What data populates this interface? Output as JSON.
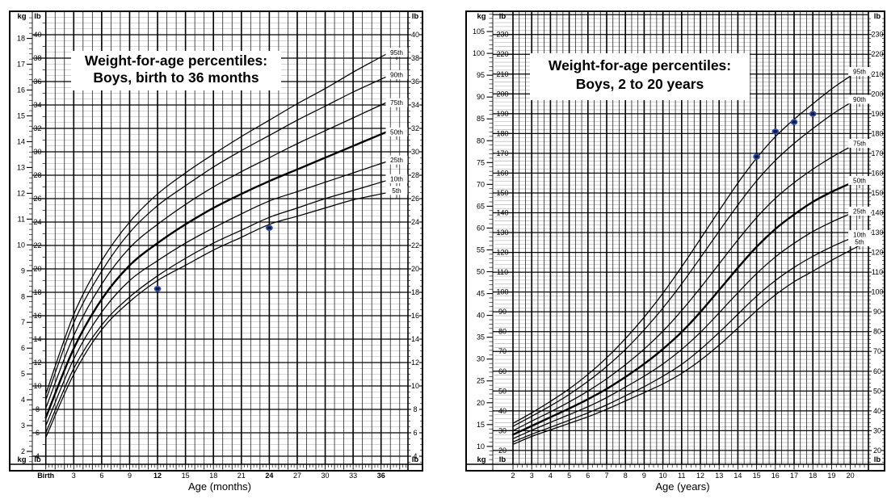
{
  "page": {
    "background": "#ffffff"
  },
  "chart_data": [
    {
      "id": "boys-birth-36-months",
      "type": "line",
      "title_lines": [
        "Weight-for-age percentiles:",
        "Boys, birth to 36 months"
      ],
      "xlabel": "Age (months)",
      "x_unit": "months",
      "xlim": [
        0,
        36
      ],
      "x_ticks": [
        0,
        3,
        6,
        9,
        12,
        15,
        18,
        21,
        24,
        27,
        30,
        33,
        36
      ],
      "x_tick_labels": [
        "Birth",
        "3",
        "6",
        "9",
        "12",
        "15",
        "18",
        "21",
        "24",
        "27",
        "30",
        "33",
        "36"
      ],
      "x_bold_labels": [
        "Birth",
        "12",
        "24",
        "36"
      ],
      "y_axes": {
        "left_unit": "kg",
        "inner_unit": "lb",
        "right_unit": "lb"
      },
      "kg_ticks": [
        2,
        3,
        4,
        5,
        6,
        7,
        8,
        9,
        10,
        11,
        12,
        13,
        14,
        15,
        16,
        17,
        18
      ],
      "lb_ticks": [
        4,
        6,
        8,
        10,
        12,
        14,
        16,
        18,
        20,
        22,
        24,
        26,
        28,
        30,
        32,
        34,
        36,
        38,
        40
      ],
      "ylim_lb": [
        3.3,
        42
      ],
      "grid": "on",
      "legend_position": "right-edge-labels",
      "series_x": [
        0,
        3,
        6,
        9,
        12,
        15,
        18,
        21,
        24,
        27,
        30,
        33,
        36
      ],
      "series": [
        {
          "name": "5th",
          "values_lb": [
            5.6,
            11.0,
            14.8,
            17.2,
            19.0,
            20.3,
            21.6,
            22.7,
            23.8,
            24.5,
            25.2,
            25.9,
            26.4
          ]
        },
        {
          "name": "10th",
          "values_lb": [
            6.0,
            11.5,
            15.2,
            17.6,
            19.4,
            20.9,
            22.2,
            23.3,
            24.4,
            25.2,
            26.0,
            26.7,
            27.4
          ]
        },
        {
          "name": "25th",
          "values_lb": [
            6.6,
            12.3,
            16.3,
            19.0,
            20.7,
            22.2,
            23.5,
            24.7,
            25.8,
            26.6,
            27.4,
            28.2,
            29.0
          ]
        },
        {
          "name": "50th",
          "values_lb": [
            7.3,
            13.2,
            17.4,
            20.3,
            22.2,
            23.8,
            25.2,
            26.4,
            27.5,
            28.5,
            29.5,
            30.5,
            31.5
          ]
        },
        {
          "name": "75th",
          "values_lb": [
            8.1,
            14.3,
            18.7,
            21.8,
            23.8,
            25.5,
            27.0,
            28.3,
            29.5,
            30.7,
            31.8,
            32.9,
            34.0
          ]
        },
        {
          "name": "90th",
          "values_lb": [
            8.8,
            15.4,
            19.8,
            23.1,
            25.4,
            27.1,
            28.7,
            30.1,
            31.4,
            32.7,
            33.9,
            35.1,
            36.2
          ]
        },
        {
          "name": "95th",
          "values_lb": [
            9.3,
            16.1,
            20.7,
            24.0,
            26.4,
            28.2,
            29.8,
            31.3,
            32.7,
            34.1,
            35.4,
            36.8,
            38.1
          ]
        }
      ],
      "median_series": "50th",
      "percentile_labels": [
        {
          "text": "95th",
          "lb": 38.5
        },
        {
          "text": "90th",
          "lb": 36.6
        },
        {
          "text": "75th",
          "lb": 34.2
        },
        {
          "text": "50th",
          "lb": 31.7
        },
        {
          "text": "25th",
          "lb": 29.3
        },
        {
          "text": "10th",
          "lb": 27.7
        },
        {
          "text": "5th",
          "lb": 26.7
        }
      ],
      "patient_points": [
        {
          "age": 12,
          "weight_lb": 18.3,
          "weight_kg": 8.3
        },
        {
          "age": 24,
          "weight_lb": 23.5,
          "weight_kg": 10.7
        }
      ],
      "marker_fill": "#0d1833",
      "marker_ring": "#2e4fae"
    },
    {
      "id": "boys-2-20-years",
      "type": "line",
      "title_lines": [
        "Weight-for-age percentiles:",
        "Boys, 2 to 20 years"
      ],
      "xlabel": "Age (years)",
      "x_unit": "years",
      "xlim": [
        2,
        20
      ],
      "x_ticks": [
        2,
        3,
        4,
        5,
        6,
        7,
        8,
        9,
        10,
        11,
        12,
        13,
        14,
        15,
        16,
        17,
        18,
        19,
        20
      ],
      "x_tick_labels": [
        "2",
        "3",
        "4",
        "5",
        "6",
        "7",
        "8",
        "9",
        "10",
        "11",
        "12",
        "13",
        "14",
        "15",
        "16",
        "17",
        "18",
        "19",
        "20"
      ],
      "x_bold_labels": [],
      "y_axes": {
        "left_unit": "kg",
        "inner_unit": "lb",
        "right_unit": "lb"
      },
      "kg_ticks": [
        10,
        15,
        20,
        25,
        30,
        35,
        40,
        45,
        50,
        55,
        60,
        65,
        70,
        75,
        80,
        85,
        90,
        95,
        100,
        105
      ],
      "lb_ticks": [
        20,
        30,
        40,
        50,
        60,
        70,
        80,
        90,
        100,
        110,
        120,
        130,
        140,
        150,
        160,
        170,
        180,
        190,
        200,
        210,
        220,
        230
      ],
      "ylim_lb": [
        13,
        242
      ],
      "grid": "on",
      "legend_position": "right-edge-labels",
      "series_x": [
        2,
        3,
        4,
        5,
        6,
        7,
        8,
        9,
        10,
        11,
        12,
        13,
        14,
        15,
        16,
        17,
        18,
        19,
        20
      ],
      "series": [
        {
          "name": "5th",
          "values_lb": [
            23.1,
            27.1,
            30.4,
            33.7,
            37.0,
            40.8,
            45.0,
            49.2,
            53.6,
            58.9,
            65.5,
            73.2,
            81.8,
            90.6,
            98.5,
            105.2,
            110.5,
            116.0,
            121.0
          ]
        },
        {
          "name": "10th",
          "values_lb": [
            24.3,
            28.2,
            31.7,
            35.3,
            39.0,
            43.0,
            47.6,
            52.2,
            57.5,
            63.5,
            71.0,
            79.6,
            88.8,
            97.9,
            105.8,
            112.4,
            118.0,
            122.8,
            127.0
          ]
        },
        {
          "name": "25th",
          "values_lb": [
            26.0,
            30.2,
            34.2,
            38.1,
            42.1,
            46.7,
            52.0,
            57.5,
            63.7,
            71.0,
            79.6,
            89.5,
            99.6,
            109.3,
            117.7,
            124.6,
            130.5,
            135.3,
            139.5
          ]
        },
        {
          "name": "50th",
          "values_lb": [
            28.0,
            32.4,
            36.8,
            41.2,
            45.9,
            51.1,
            57.1,
            63.7,
            71.2,
            79.8,
            89.9,
            101.0,
            112.2,
            122.8,
            131.8,
            139.1,
            145.5,
            150.5,
            154.8
          ]
        },
        {
          "name": "75th",
          "values_lb": [
            30.0,
            34.8,
            39.5,
            44.5,
            50.0,
            56.2,
            63.3,
            71.2,
            80.2,
            90.6,
            102.1,
            114.2,
            126.3,
            137.6,
            147.3,
            155.2,
            162.0,
            168.0,
            173.3
          ]
        },
        {
          "name": "90th",
          "values_lb": [
            32.2,
            37.3,
            42.5,
            48.3,
            54.9,
            62.4,
            71.0,
            80.9,
            91.9,
            104.1,
            117.3,
            130.7,
            143.9,
            156.1,
            166.4,
            175.0,
            182.5,
            189.5,
            195.5
          ]
        },
        {
          "name": "95th",
          "values_lb": [
            33.7,
            39.0,
            44.8,
            51.1,
            58.4,
            66.8,
            76.5,
            87.3,
            99.4,
            112.7,
            126.8,
            141.1,
            155.0,
            167.6,
            178.4,
            187.2,
            195.0,
            202.5,
            209.0
          ]
        }
      ],
      "median_series": "50th",
      "percentile_labels": [
        {
          "text": "95th",
          "lb": 211.3
        },
        {
          "text": "90th",
          "lb": 197.3
        },
        {
          "text": "75th",
          "lb": 175.0
        },
        {
          "text": "50th",
          "lb": 156.3
        },
        {
          "text": "25th",
          "lb": 140.8
        },
        {
          "text": "10th",
          "lb": 129.0
        },
        {
          "text": "5th",
          "lb": 125.3
        }
      ],
      "patient_points": [
        {
          "age": 15,
          "weight_lb": 168.3,
          "weight_kg": 76.3
        },
        {
          "age": 16,
          "weight_lb": 181.0,
          "weight_kg": 82.1
        },
        {
          "age": 17,
          "weight_lb": 185.8,
          "weight_kg": 84.3
        },
        {
          "age": 18,
          "weight_lb": 189.9,
          "weight_kg": 86.1
        }
      ],
      "marker_fill": "#0d1833",
      "marker_ring": "#2e4fae"
    }
  ]
}
